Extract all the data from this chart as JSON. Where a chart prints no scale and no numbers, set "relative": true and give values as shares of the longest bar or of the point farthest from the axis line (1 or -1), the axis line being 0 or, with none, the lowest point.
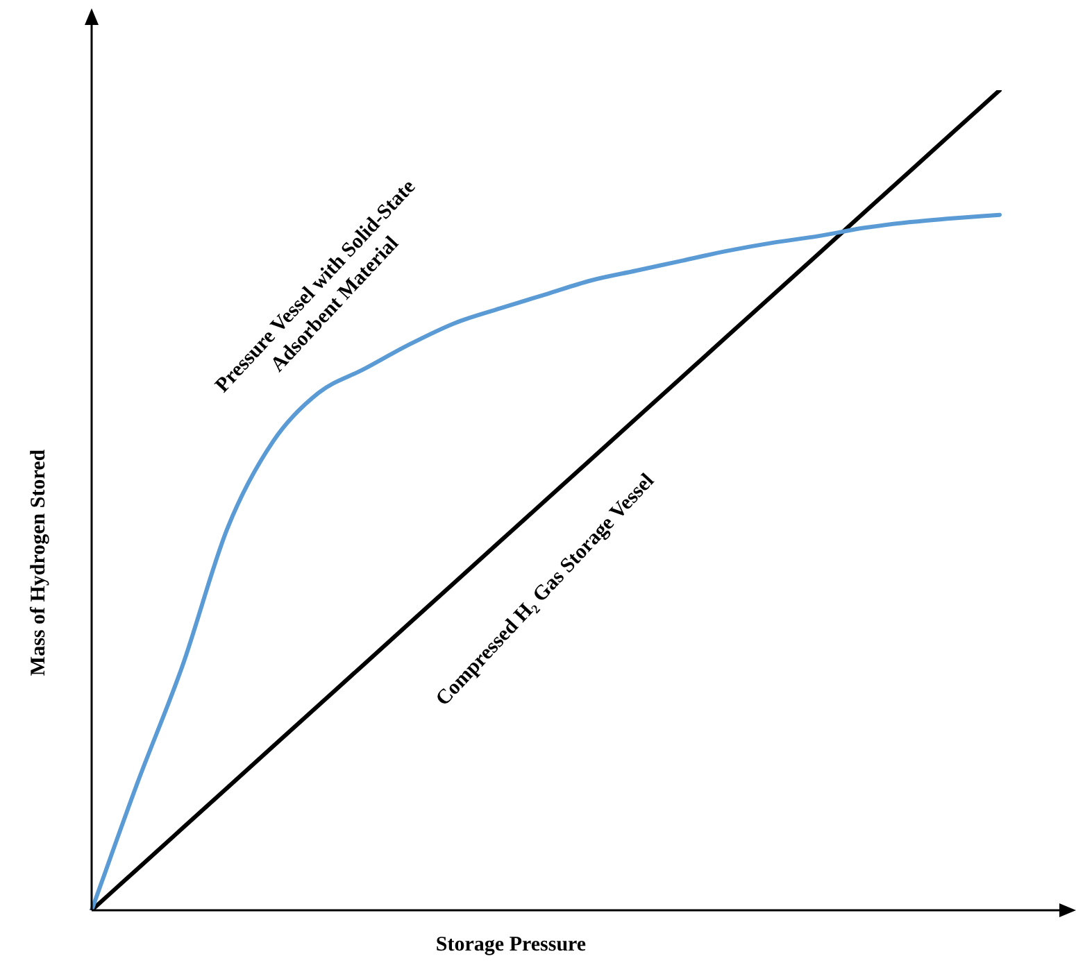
{
  "chart_data": {
    "type": "line",
    "relative": true,
    "xlabel": "Storage Pressure",
    "ylabel": "Mass of Hydrogen Stored",
    "legend": false,
    "marker": "none",
    "line_style": "solid",
    "categories": [
      null,
      null,
      null,
      null,
      null,
      null,
      null,
      null,
      null,
      null,
      null,
      null,
      null,
      null,
      null,
      null,
      null,
      null,
      null,
      null,
      null
    ],
    "series": [
      {
        "name": "Pressure Vessel with Solid-State Adsorbent Material",
        "color": "#5b9bd5",
        "values": [
          0,
          0.154,
          0.298,
          0.467,
          0.572,
          0.631,
          0.66,
          0.69,
          0.716,
          0.734,
          0.751,
          0.768,
          0.78,
          0.792,
          0.804,
          0.814,
          0.822,
          0.832,
          0.839,
          0.844,
          0.848
        ]
      },
      {
        "name": "Compressed H₂ Gas Storage Vessel",
        "color": "#000000",
        "values": [
          0,
          0.05,
          0.1,
          0.15,
          0.2,
          0.25,
          0.3,
          0.35,
          0.4,
          0.45,
          0.5,
          0.55,
          0.6,
          0.65,
          0.7,
          0.75,
          0.8,
          0.85,
          0.9,
          0.95,
          1
        ]
      }
    ]
  }
}
